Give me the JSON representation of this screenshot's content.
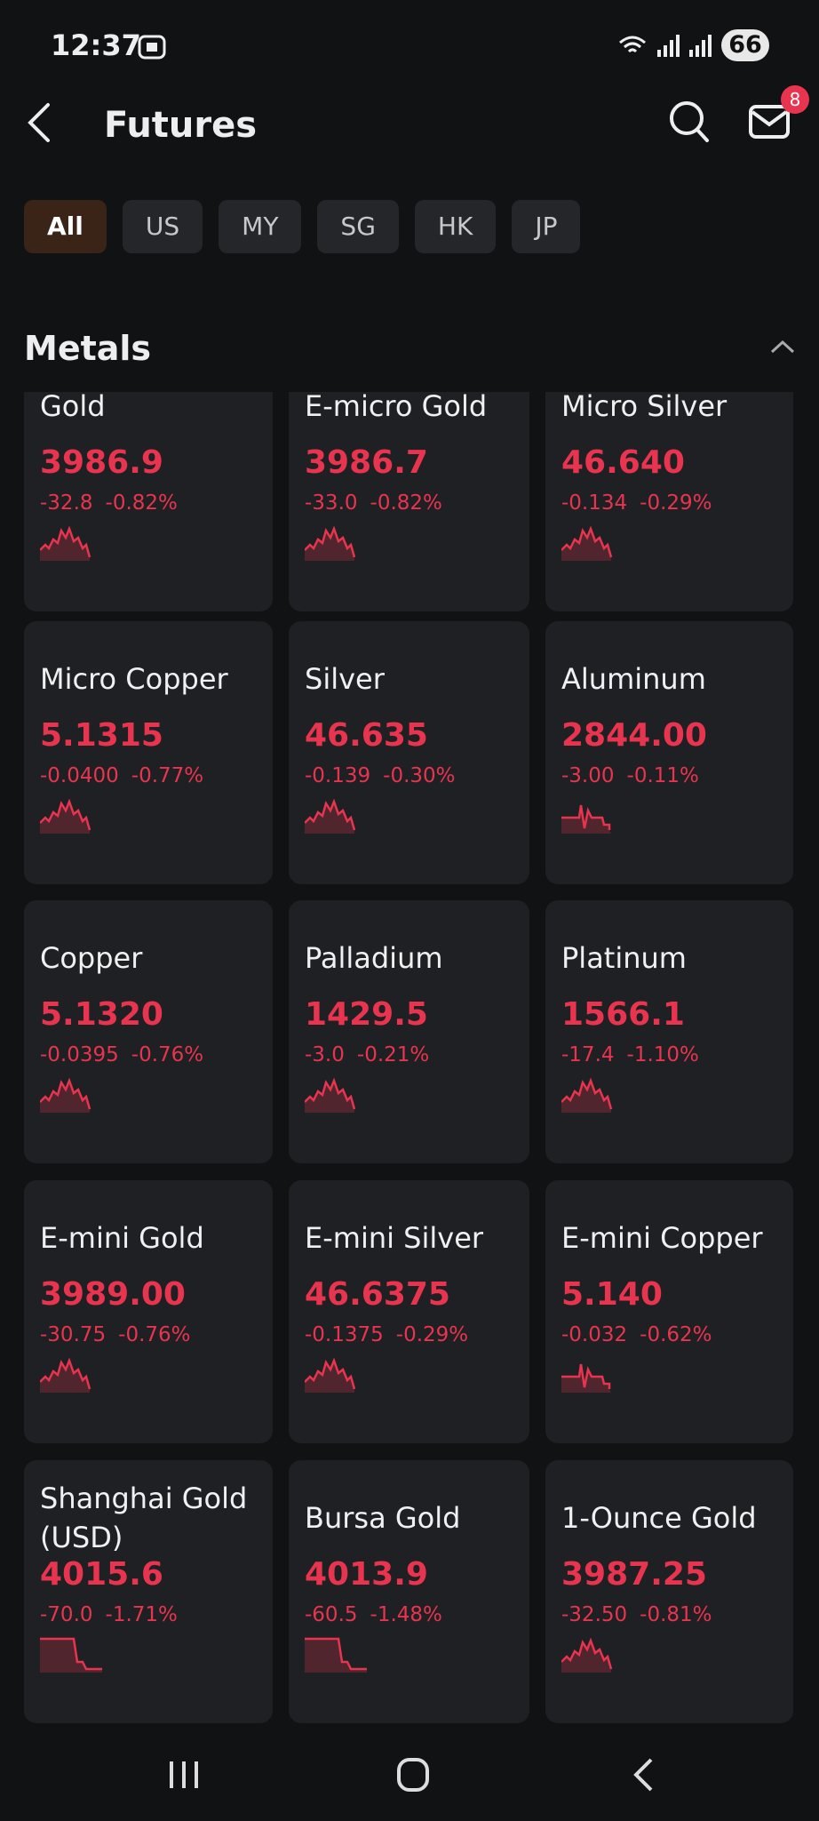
{
  "status_bar": {
    "time": "12:37",
    "battery": "66"
  },
  "header": {
    "title": "Futures",
    "badge": "8"
  },
  "tabs": [
    "All",
    "US",
    "MY",
    "SG",
    "HK",
    "JP"
  ],
  "section": {
    "title": "Metals"
  },
  "cards": [
    {
      "name": "Gold",
      "price": "3986.9",
      "change": "-32.8",
      "percent": "-0.82%"
    },
    {
      "name": "E-micro Gold",
      "price": "3986.7",
      "change": "-33.0",
      "percent": "-0.82%"
    },
    {
      "name": "Micro Silver",
      "price": "46.640",
      "change": "-0.134",
      "percent": "-0.29%"
    },
    {
      "name": "Micro Copper",
      "price": "5.1315",
      "change": "-0.0400",
      "percent": "-0.77%"
    },
    {
      "name": "Silver",
      "price": "46.635",
      "change": "-0.139",
      "percent": "-0.30%"
    },
    {
      "name": "Aluminum",
      "price": "2844.00",
      "change": "-3.00",
      "percent": "-0.11%"
    },
    {
      "name": "Copper",
      "price": "5.1320",
      "change": "-0.0395",
      "percent": "-0.76%"
    },
    {
      "name": "Palladium",
      "price": "1429.5",
      "change": "-3.0",
      "percent": "-0.21%"
    },
    {
      "name": "Platinum",
      "price": "1566.1",
      "change": "-17.4",
      "percent": "-1.10%"
    },
    {
      "name": "E-mini Gold",
      "price": "3989.00",
      "change": "-30.75",
      "percent": "-0.76%"
    },
    {
      "name": "E-mini Silver",
      "price": "46.6375",
      "change": "-0.1375",
      "percent": "-0.29%"
    },
    {
      "name": "E-mini Copper",
      "price": "5.140",
      "change": "-0.032",
      "percent": "-0.62%"
    },
    {
      "name": "Shanghai Gold (USD)",
      "price": "4015.6",
      "change": "-70.0",
      "percent": "-1.71%"
    },
    {
      "name": "Bursa Gold",
      "price": "4013.9",
      "change": "-60.5",
      "percent": "-1.48%"
    },
    {
      "name": "1-Ounce Gold",
      "price": "3987.25",
      "change": "-32.50",
      "percent": "-0.81%"
    }
  ]
}
